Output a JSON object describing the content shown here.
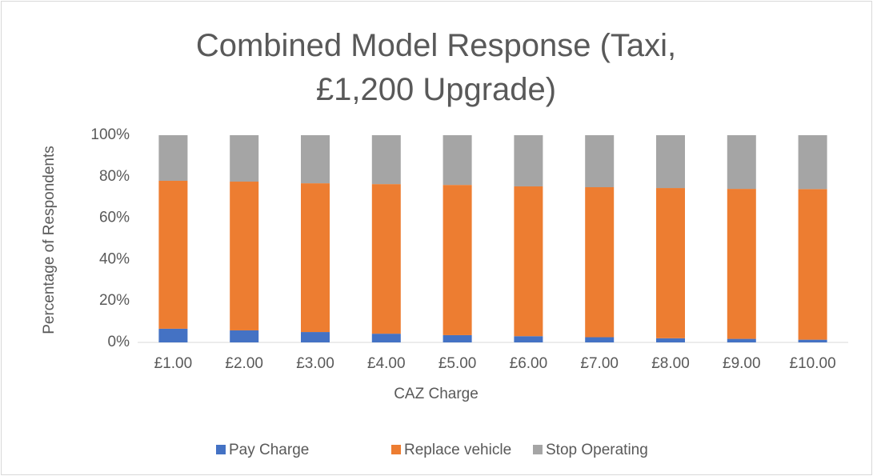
{
  "chart_data": {
    "type": "stacked_bar",
    "title": "Combined Model Response (Taxi, £1,200 Upgrade)",
    "xlabel": "CAZ Charge",
    "ylabel": "Percentage of Respondents",
    "categories": [
      "£1.00",
      "£2.00",
      "£3.00",
      "£4.00",
      "£5.00",
      "£6.00",
      "£7.00",
      "£8.00",
      "£9.00",
      "£10.00"
    ],
    "series": [
      {
        "name": "Pay Charge",
        "color": "#4472c4",
        "values": [
          6.6,
          5.8,
          5.0,
          4.2,
          3.5,
          3.0,
          2.5,
          2.0,
          1.7,
          1.3
        ]
      },
      {
        "name": "Replace vehicle",
        "color": "#ed7d31",
        "values": [
          71.4,
          71.8,
          71.8,
          72.2,
          72.5,
          72.3,
          72.4,
          72.5,
          72.4,
          72.7
        ]
      },
      {
        "name": "Stop Operating",
        "color": "#a5a5a5",
        "values": [
          22.0,
          22.4,
          23.2,
          23.6,
          24.0,
          24.7,
          25.1,
          25.5,
          25.9,
          26.0
        ]
      }
    ],
    "ylim": [
      0,
      100
    ],
    "yticks": [
      {
        "value": 0,
        "label": "0%"
      },
      {
        "value": 20,
        "label": "20%"
      },
      {
        "value": 40,
        "label": "40%"
      },
      {
        "value": 60,
        "label": "60%"
      },
      {
        "value": 80,
        "label": "80%"
      },
      {
        "value": 100,
        "label": "100%"
      }
    ],
    "legend": "bottom"
  }
}
